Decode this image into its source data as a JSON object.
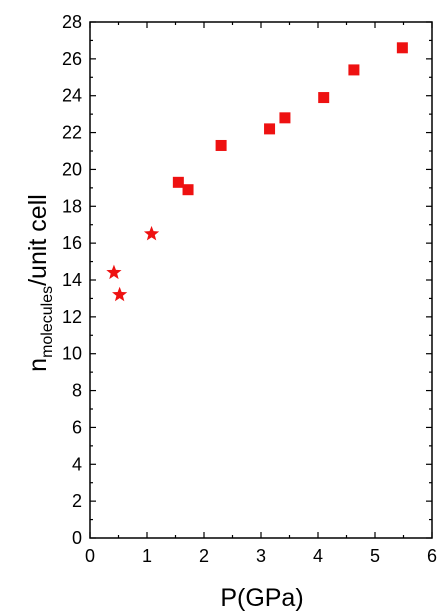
{
  "chart_data": {
    "type": "scatter",
    "xlabel": "P(GPa)",
    "ylabel_main": "n",
    "ylabel_sub": "molecules",
    "ylabel_rest": "/unit cell",
    "xlim": [
      0,
      6
    ],
    "ylim": [
      0,
      28
    ],
    "x_ticks": [
      "0",
      "1",
      "2",
      "3",
      "4",
      "5",
      "6"
    ],
    "y_ticks": [
      "0",
      "2",
      "4",
      "6",
      "8",
      "10",
      "12",
      "14",
      "16",
      "18",
      "20",
      "22",
      "24",
      "26",
      "28"
    ],
    "grid": false,
    "legend": "none",
    "marker_color": "#ee1111",
    "series": [
      {
        "marker": "star",
        "points": [
          [
            0.42,
            14.4
          ],
          [
            0.52,
            13.2
          ],
          [
            1.08,
            16.5
          ]
        ]
      },
      {
        "marker": "square",
        "points": [
          [
            1.55,
            19.3
          ],
          [
            1.72,
            18.9
          ],
          [
            2.3,
            21.3
          ],
          [
            3.15,
            22.2
          ],
          [
            3.42,
            22.8
          ],
          [
            4.1,
            23.9
          ],
          [
            4.63,
            25.4
          ],
          [
            5.48,
            26.6
          ]
        ]
      }
    ]
  }
}
